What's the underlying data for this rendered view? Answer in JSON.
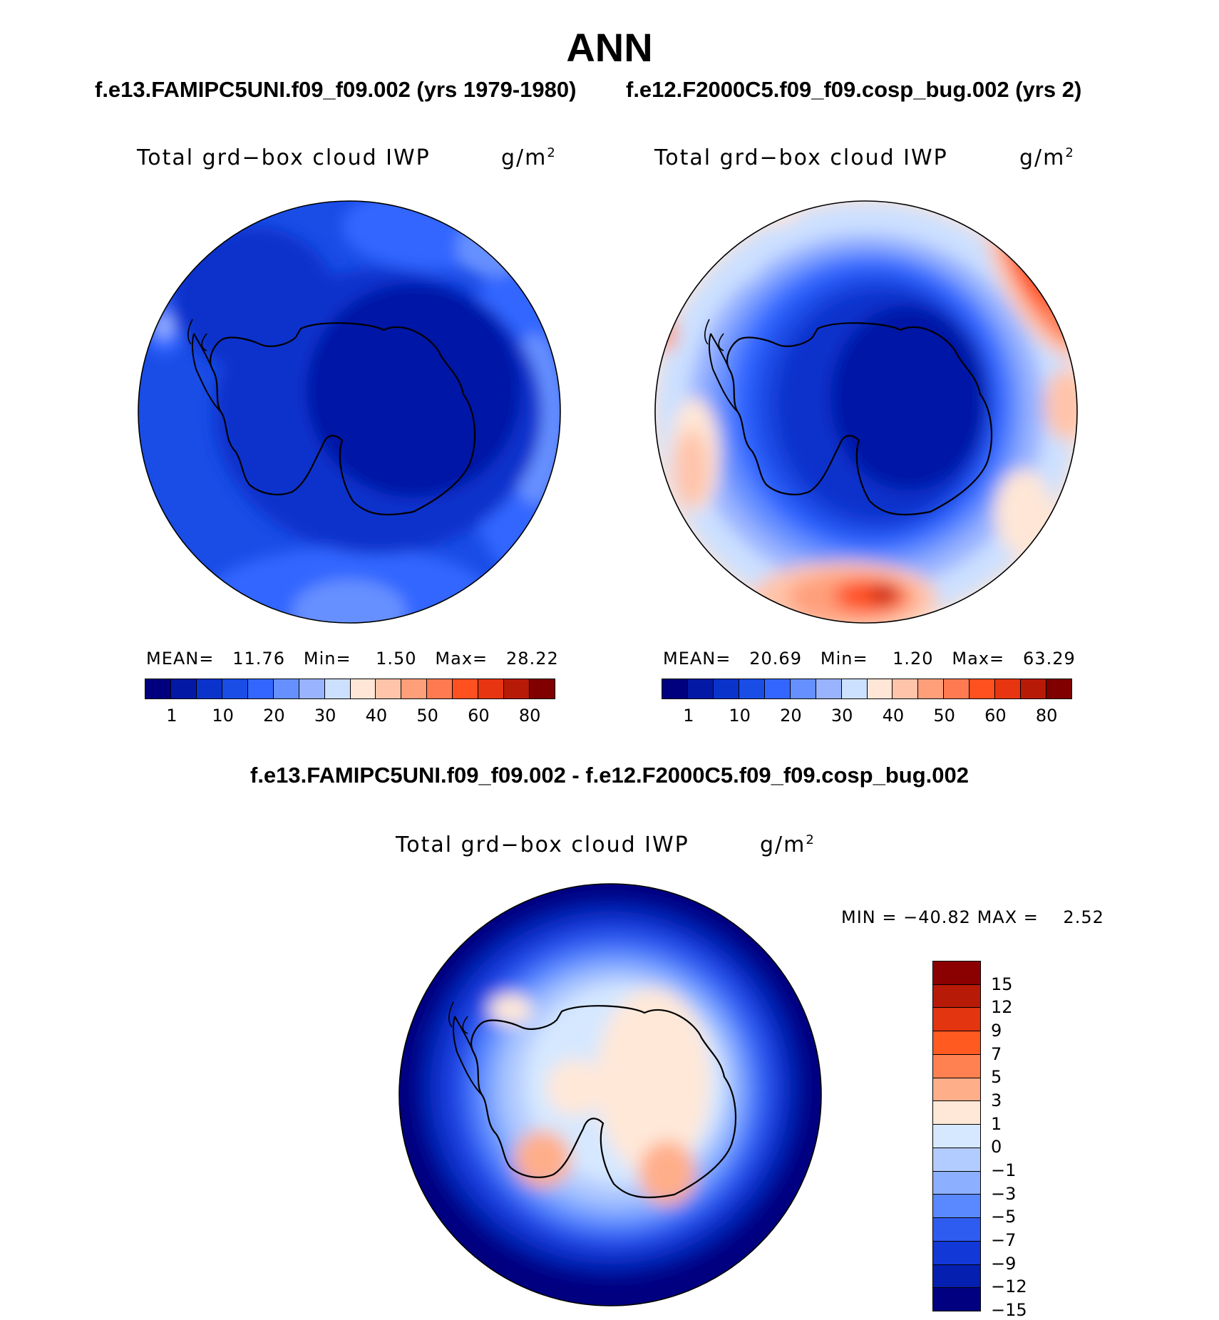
{
  "season": "ANN",
  "case1": "f.e13.FAMIPC5UNI.f09_f09.002 (yrs 1979-1980)",
  "case2": "f.e12.F2000C5.f09_f09.cosp_bug.002 (yrs 2)",
  "diff_title": "f.e13.FAMIPC5UNI.f09_f09.002 - f.e12.F2000C5.f09_f09.cosp_bug.002",
  "variable": "Total grd−box cloud IWP",
  "units": "g/m",
  "units_exp": "2",
  "panel1": {
    "mean_label": "MEAN=",
    "mean": "11.76",
    "min_label": "Min=",
    "min": "1.50",
    "max_label": "Max=",
    "max": "28.22"
  },
  "panel2": {
    "mean_label": "MEAN=",
    "mean": "20.69",
    "min_label": "Min=",
    "min": "1.20",
    "max_label": "Max=",
    "max": "63.29"
  },
  "panel3": {
    "min_label": "MIN =",
    "min": "−40.82",
    "max_label": "MAX =",
    "max": "2.52"
  },
  "colorbar_abs": {
    "colors": [
      "#00007f",
      "#0319a6",
      "#0a33cc",
      "#1a4ce6",
      "#3366ff",
      "#6690ff",
      "#99b3ff",
      "#cce0ff",
      "#ffe6d6",
      "#ffc4aa",
      "#ff9f7a",
      "#ff7a50",
      "#ff5020",
      "#e63510",
      "#b81a08",
      "#800000"
    ],
    "tick_labels": [
      "1",
      "10",
      "20",
      "30",
      "40",
      "50",
      "60",
      "80"
    ]
  },
  "colorbar_diff": {
    "colors": [
      "#8b0000",
      "#b81a08",
      "#e23510",
      "#ff5a20",
      "#ff8050",
      "#ffae8a",
      "#ffe8d8",
      "#d6e8ff",
      "#b3ccff",
      "#8cb0ff",
      "#5a88ff",
      "#2f5cf0",
      "#1238d8",
      "#0520b0",
      "#000080"
    ],
    "tick_labels": [
      "15",
      "12",
      "9",
      "7",
      "5",
      "3",
      "1",
      "0",
      "−1",
      "−3",
      "−5",
      "−7",
      "−9",
      "−12",
      "−15"
    ]
  }
}
